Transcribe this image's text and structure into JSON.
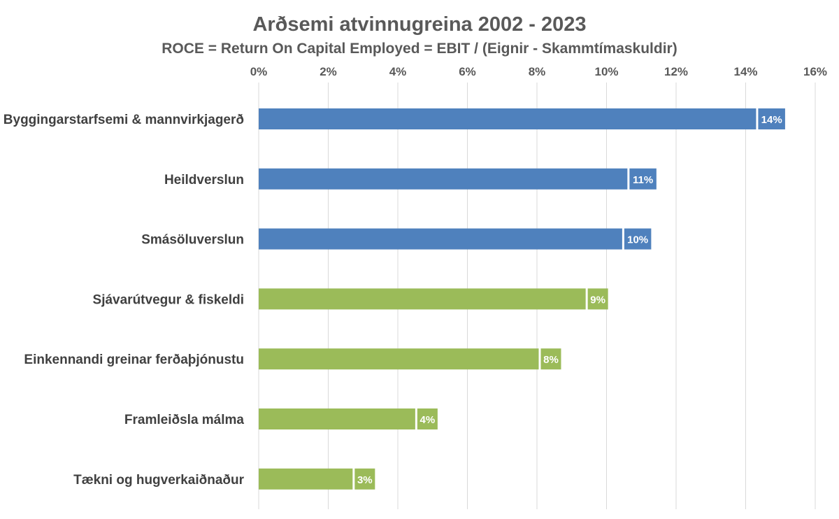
{
  "chart_data": {
    "type": "bar",
    "orientation": "horizontal",
    "title": "Arðsemi atvinnugreina 2002 - 2023",
    "subtitle": "ROCE = Return On Capital Employed = EBIT / (Eignir - Skammtímaskuldir)",
    "xlabel": "",
    "ylabel": "",
    "xlim": [
      0,
      16
    ],
    "x_axis_position": "top",
    "x_ticks": [
      "0%",
      "2%",
      "4%",
      "6%",
      "8%",
      "10%",
      "12%",
      "14%",
      "16%"
    ],
    "grid": true,
    "legend": "none",
    "colors": {
      "blue": "#4f81bd",
      "green": "#9bbb59"
    },
    "categories": [
      "Byggingarstarfsemi & mannvirkjagerð",
      "Heildverslun",
      "Smásöluverslun",
      "Sjávarútvegur & fiskeldi",
      "Einkennandi greinar ferðaþjónustu",
      "Framleiðsla málma",
      "Tækni og hugverkaiðnaður"
    ],
    "values": [
      14.3,
      10.6,
      10.45,
      9.4,
      8.05,
      4.5,
      2.7
    ],
    "data_labels": [
      "14%",
      "11%",
      "10%",
      "9%",
      "8%",
      "4%",
      "3%"
    ],
    "bar_colors": [
      "#4f81bd",
      "#4f81bd",
      "#4f81bd",
      "#9bbb59",
      "#9bbb59",
      "#9bbb59",
      "#9bbb59"
    ]
  }
}
